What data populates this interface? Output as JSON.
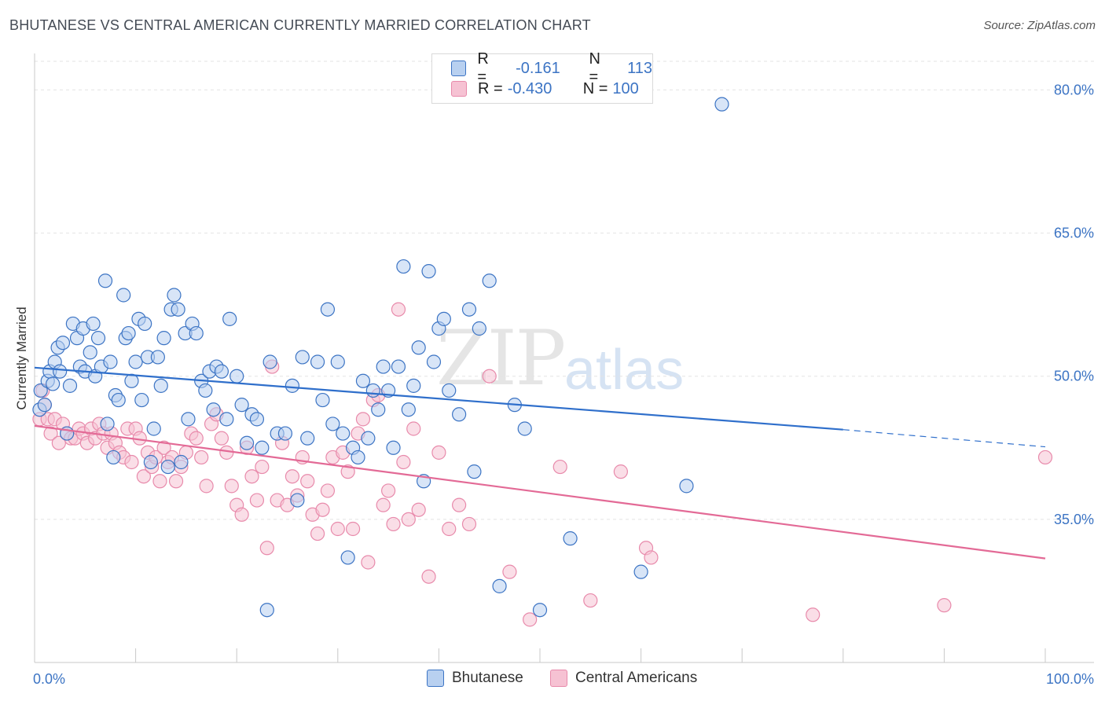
{
  "title": "BHUTANESE VS CENTRAL AMERICAN CURRENTLY MARRIED CORRELATION CHART",
  "source": "Source: ZipAtlas.com",
  "watermark": {
    "zip": "ZIP",
    "atlas": "atlas"
  },
  "colors": {
    "blue": "#3c74c4",
    "blue_fill": "#b8d0f0",
    "blue_line": "#2f6fcb",
    "pink_fill": "#f6c2d3",
    "pink_line": "#e36a96",
    "pink_stroke": "#e88aab"
  },
  "legend": {
    "rows": [
      {
        "r_label": "R =",
        "r_value": "-0.161",
        "n_label": "N =",
        "n_value": "113"
      },
      {
        "r_label": "R =",
        "r_value": "-0.430",
        "n_label": "N =",
        "n_value": "100"
      }
    ]
  },
  "bottom_legend": [
    {
      "label": "Bhutanese"
    },
    {
      "label": "Central Americans"
    }
  ],
  "chart_data": {
    "type": "scatter",
    "title": "BHUTANESE VS CENTRAL AMERICAN CURRENTLY MARRIED CORRELATION CHART",
    "xlabel": "",
    "ylabel": "Currently Married",
    "xlim": [
      0,
      100
    ],
    "ylim": [
      20,
      83
    ],
    "x_tick_labels": [
      "0.0%",
      "100.0%"
    ],
    "y_ticks": [
      35,
      50,
      65,
      80
    ],
    "y_tick_labels": [
      "35.0%",
      "50.0%",
      "65.0%",
      "80.0%"
    ],
    "grid": true,
    "legend_position": "top-center",
    "series": [
      {
        "name": "Bhutanese",
        "trend": {
          "x0": 0,
          "y0": 50.9,
          "x1": 80,
          "y1": 44.4,
          "x_dash_end": 100,
          "y_dash_end": 42.6
        },
        "points": [
          [
            0.5,
            46.5
          ],
          [
            0.6,
            48.5
          ],
          [
            1.0,
            47.0
          ],
          [
            1.3,
            49.5
          ],
          [
            1.5,
            50.5
          ],
          [
            1.8,
            49.2
          ],
          [
            2.0,
            51.5
          ],
          [
            2.3,
            53.0
          ],
          [
            2.5,
            50.5
          ],
          [
            2.8,
            53.5
          ],
          [
            3.2,
            44.0
          ],
          [
            3.5,
            49.0
          ],
          [
            3.8,
            55.5
          ],
          [
            4.2,
            54.0
          ],
          [
            4.5,
            51.0
          ],
          [
            4.8,
            55.0
          ],
          [
            5.0,
            50.5
          ],
          [
            5.5,
            52.5
          ],
          [
            5.8,
            55.5
          ],
          [
            6.0,
            50.0
          ],
          [
            6.3,
            54.0
          ],
          [
            6.6,
            51.0
          ],
          [
            7.0,
            60.0
          ],
          [
            7.2,
            45.0
          ],
          [
            7.5,
            51.5
          ],
          [
            7.8,
            41.5
          ],
          [
            8.0,
            48.0
          ],
          [
            8.3,
            47.5
          ],
          [
            8.8,
            58.5
          ],
          [
            9.0,
            54.0
          ],
          [
            9.3,
            54.5
          ],
          [
            9.6,
            49.5
          ],
          [
            10.0,
            51.5
          ],
          [
            10.3,
            56.0
          ],
          [
            10.6,
            47.5
          ],
          [
            10.9,
            55.5
          ],
          [
            11.2,
            52.0
          ],
          [
            11.5,
            41.0
          ],
          [
            11.8,
            44.5
          ],
          [
            12.2,
            52.0
          ],
          [
            12.5,
            49.0
          ],
          [
            12.8,
            54.0
          ],
          [
            13.2,
            40.5
          ],
          [
            13.5,
            57.0
          ],
          [
            13.8,
            58.5
          ],
          [
            14.2,
            57.0
          ],
          [
            14.5,
            41.0
          ],
          [
            14.9,
            54.5
          ],
          [
            15.2,
            45.5
          ],
          [
            15.6,
            55.5
          ],
          [
            16.0,
            54.5
          ],
          [
            16.5,
            49.5
          ],
          [
            16.9,
            48.5
          ],
          [
            17.3,
            50.5
          ],
          [
            17.7,
            46.5
          ],
          [
            18.0,
            51.0
          ],
          [
            18.5,
            50.5
          ],
          [
            19.0,
            45.5
          ],
          [
            19.3,
            56.0
          ],
          [
            20.0,
            50.0
          ],
          [
            20.5,
            47.0
          ],
          [
            21.0,
            43.0
          ],
          [
            21.5,
            46.0
          ],
          [
            22.0,
            45.5
          ],
          [
            22.5,
            42.5
          ],
          [
            23.0,
            25.5
          ],
          [
            23.3,
            51.5
          ],
          [
            24.0,
            44.0
          ],
          [
            24.8,
            44.0
          ],
          [
            25.5,
            49.0
          ],
          [
            26.0,
            37.0
          ],
          [
            26.5,
            52.0
          ],
          [
            27.0,
            43.5
          ],
          [
            28.0,
            51.5
          ],
          [
            28.5,
            47.5
          ],
          [
            29.0,
            57.0
          ],
          [
            29.5,
            45.0
          ],
          [
            30.0,
            51.5
          ],
          [
            30.5,
            44.0
          ],
          [
            31.0,
            31.0
          ],
          [
            31.5,
            42.5
          ],
          [
            32.0,
            41.5
          ],
          [
            32.5,
            49.5
          ],
          [
            33.0,
            43.5
          ],
          [
            33.5,
            48.5
          ],
          [
            34.0,
            46.5
          ],
          [
            34.5,
            51.0
          ],
          [
            35.0,
            48.5
          ],
          [
            35.5,
            42.5
          ],
          [
            36.0,
            51.0
          ],
          [
            36.5,
            61.5
          ],
          [
            37.0,
            46.5
          ],
          [
            37.5,
            49.0
          ],
          [
            38.0,
            53.0
          ],
          [
            38.5,
            39.0
          ],
          [
            39.0,
            61.0
          ],
          [
            39.5,
            51.5
          ],
          [
            40.0,
            55.0
          ],
          [
            40.5,
            56.0
          ],
          [
            41.0,
            48.5
          ],
          [
            42.0,
            46.0
          ],
          [
            43.0,
            57.0
          ],
          [
            43.5,
            40.0
          ],
          [
            44.0,
            55.0
          ],
          [
            45.0,
            60.0
          ],
          [
            46.0,
            28.0
          ],
          [
            50.0,
            25.5
          ],
          [
            53.0,
            33.0
          ],
          [
            60.0,
            29.5
          ],
          [
            64.5,
            38.5
          ],
          [
            68.0,
            78.5
          ],
          [
            47.5,
            47.0
          ],
          [
            48.5,
            44.5
          ]
        ]
      },
      {
        "name": "Central Americans",
        "trend": {
          "x0": 0,
          "y0": 44.8,
          "x1": 100,
          "y1": 30.9
        },
        "points": [
          [
            0.5,
            45.5
          ],
          [
            0.8,
            48.5
          ],
          [
            1.0,
            47.0
          ],
          [
            1.3,
            45.5
          ],
          [
            1.6,
            44.0
          ],
          [
            2.0,
            45.5
          ],
          [
            2.4,
            43.0
          ],
          [
            2.8,
            45.0
          ],
          [
            3.2,
            44.0
          ],
          [
            3.6,
            43.5
          ],
          [
            4.0,
            43.5
          ],
          [
            4.4,
            44.5
          ],
          [
            4.8,
            44.0
          ],
          [
            5.2,
            43.0
          ],
          [
            5.6,
            44.5
          ],
          [
            6.0,
            43.5
          ],
          [
            6.4,
            45.0
          ],
          [
            6.8,
            44.0
          ],
          [
            7.2,
            42.5
          ],
          [
            7.6,
            44.0
          ],
          [
            8.0,
            43.0
          ],
          [
            8.4,
            42.0
          ],
          [
            8.8,
            41.5
          ],
          [
            9.2,
            44.5
          ],
          [
            9.6,
            41.0
          ],
          [
            10.0,
            44.5
          ],
          [
            10.4,
            43.5
          ],
          [
            10.8,
            39.5
          ],
          [
            11.2,
            42.0
          ],
          [
            11.6,
            40.5
          ],
          [
            12.0,
            41.5
          ],
          [
            12.4,
            39.0
          ],
          [
            12.8,
            42.5
          ],
          [
            13.2,
            41.0
          ],
          [
            13.6,
            41.5
          ],
          [
            14.0,
            39.0
          ],
          [
            14.5,
            40.5
          ],
          [
            15.0,
            42.0
          ],
          [
            15.5,
            44.0
          ],
          [
            16.0,
            43.5
          ],
          [
            16.5,
            41.5
          ],
          [
            17.0,
            38.5
          ],
          [
            17.5,
            45.0
          ],
          [
            18.0,
            46.0
          ],
          [
            18.5,
            43.5
          ],
          [
            19.0,
            42.0
          ],
          [
            19.5,
            38.5
          ],
          [
            20.0,
            36.5
          ],
          [
            20.5,
            35.5
          ],
          [
            21.0,
            42.5
          ],
          [
            21.5,
            39.5
          ],
          [
            22.0,
            37.0
          ],
          [
            22.5,
            40.5
          ],
          [
            23.0,
            32.0
          ],
          [
            23.5,
            51.0
          ],
          [
            24.0,
            37.0
          ],
          [
            24.5,
            43.0
          ],
          [
            25.0,
            36.5
          ],
          [
            25.5,
            39.5
          ],
          [
            26.0,
            37.5
          ],
          [
            26.5,
            41.5
          ],
          [
            27.0,
            39.0
          ],
          [
            27.5,
            35.5
          ],
          [
            28.0,
            33.5
          ],
          [
            28.5,
            36.0
          ],
          [
            29.0,
            38.0
          ],
          [
            29.5,
            41.5
          ],
          [
            30.0,
            34.0
          ],
          [
            30.5,
            42.0
          ],
          [
            31.0,
            40.0
          ],
          [
            31.5,
            34.0
          ],
          [
            32.0,
            44.0
          ],
          [
            32.5,
            45.5
          ],
          [
            33.0,
            30.5
          ],
          [
            33.5,
            47.5
          ],
          [
            34.0,
            48.0
          ],
          [
            34.5,
            36.5
          ],
          [
            35.0,
            38.0
          ],
          [
            35.5,
            34.5
          ],
          [
            36.0,
            57.0
          ],
          [
            36.5,
            41.0
          ],
          [
            37.0,
            35.0
          ],
          [
            37.5,
            44.5
          ],
          [
            38.0,
            36.0
          ],
          [
            39.0,
            29.0
          ],
          [
            40.0,
            42.0
          ],
          [
            41.0,
            34.0
          ],
          [
            42.0,
            36.5
          ],
          [
            43.0,
            34.5
          ],
          [
            45.0,
            50.0
          ],
          [
            47.0,
            29.5
          ],
          [
            49.0,
            24.5
          ],
          [
            52.0,
            40.5
          ],
          [
            55.0,
            26.5
          ],
          [
            58.0,
            40.0
          ],
          [
            60.5,
            32.0
          ],
          [
            61.0,
            31.0
          ],
          [
            77.0,
            25.0
          ],
          [
            90.0,
            26.0
          ],
          [
            100.0,
            41.5
          ]
        ]
      }
    ]
  }
}
